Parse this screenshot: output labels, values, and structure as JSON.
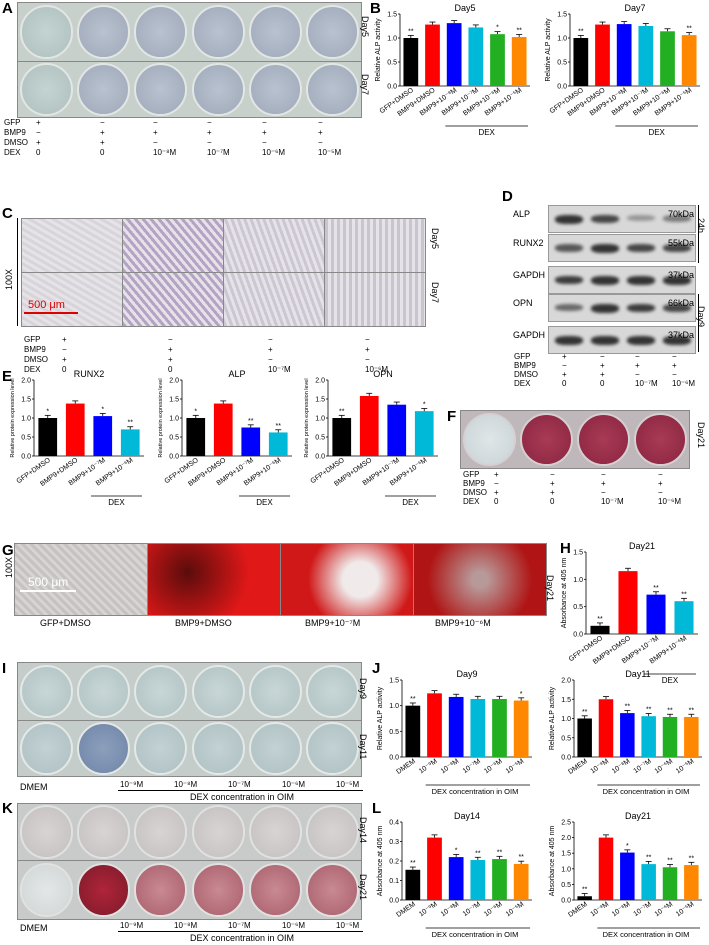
{
  "panels": {
    "A": "A",
    "B": "B",
    "C": "C",
    "D": "D",
    "E": "E",
    "F": "F",
    "G": "G",
    "H": "H",
    "I": "I",
    "J": "J",
    "K": "K",
    "L": "L"
  },
  "days": {
    "day5": "Day5",
    "day7": "Day7",
    "day9": "Day9",
    "day11": "Day11",
    "day14": "Day14",
    "day21": "Day21",
    "h24": "24h"
  },
  "treat_labels": [
    "GFP",
    "BMP9",
    "DMSO",
    "DEX"
  ],
  "treat_A": {
    "GFP": [
      "+",
      "−",
      "−",
      "−",
      "−",
      "−"
    ],
    "BMP9": [
      "−",
      "+",
      "+",
      "+",
      "+",
      "+"
    ],
    "DMSO": [
      "+",
      "+",
      "−",
      "−",
      "−",
      "−"
    ],
    "DEX": [
      "0",
      "0",
      "10⁻⁸M",
      "10⁻⁷M",
      "10⁻⁶M",
      "10⁻⁵M"
    ]
  },
  "treat_4": {
    "GFP": [
      "+",
      "−",
      "−",
      "−"
    ],
    "BMP9": [
      "−",
      "+",
      "+",
      "+"
    ],
    "DMSO": [
      "+",
      "+",
      "−",
      "−"
    ],
    "DEX": [
      "0",
      "0",
      "10⁻⁷M",
      "10⁻⁶M"
    ]
  },
  "scale_bar": "500 μm",
  "mag": "100X",
  "g_labels": [
    "GFP+DMSO",
    "BMP9+DMSO",
    "BMP9+10⁻⁷M",
    "BMP9+10⁻⁶M"
  ],
  "blot_proteins": [
    "ALP",
    "RUNX2",
    "GAPDH",
    "OPN",
    "GAPDH"
  ],
  "blot_kda": [
    "70kDa",
    "55kDa",
    "37kDa",
    "66kDa",
    "37kDa"
  ],
  "ij_labels": {
    "dmem": "DMEM",
    "oim": "DEX concentration in OIM",
    "conc": [
      "10⁻⁹M",
      "10⁻⁸M",
      "10⁻⁷M",
      "10⁻⁶M",
      "10⁻⁵M"
    ]
  },
  "colors": [
    "#000000",
    "#ff0000",
    "#0000ff",
    "#00b8d8",
    "#22b022",
    "#ff8800"
  ],
  "chart_data": [
    {
      "id": "B-day5",
      "type": "bar",
      "title": "Day5",
      "ylabel": "Relative ALP activity",
      "ylim": [
        0,
        1.5
      ],
      "ticks": [
        0,
        0.5,
        1.0,
        1.5
      ],
      "categories": [
        "GFP+DMSO",
        "BMP9+DMSO",
        "BMP9+10⁻⁸M",
        "BMP9+10⁻⁷M",
        "BMP9+10⁻⁶M",
        "BMP9+10⁻⁵M"
      ],
      "values": [
        1.0,
        1.28,
        1.31,
        1.22,
        1.08,
        1.02
      ],
      "sig": [
        "**",
        "",
        "",
        "",
        "*",
        "**"
      ],
      "group": "DEX"
    },
    {
      "id": "B-day7",
      "type": "bar",
      "title": "Day7",
      "ylabel": "Relative ALP activity",
      "ylim": [
        0,
        1.5
      ],
      "ticks": [
        0,
        0.5,
        1.0,
        1.5
      ],
      "categories": [
        "GFP+DMSO",
        "BMP9+DMSO",
        "BMP9+10⁻⁸M",
        "BMP9+10⁻⁷M",
        "BMP9+10⁻⁶M",
        "BMP9+10⁻⁵M"
      ],
      "values": [
        1.0,
        1.28,
        1.29,
        1.25,
        1.14,
        1.06
      ],
      "sig": [
        "**",
        "",
        "",
        "",
        "",
        "**"
      ],
      "group": "DEX"
    },
    {
      "id": "E-runx2",
      "type": "bar",
      "title": "RUNX2",
      "ylabel": "Relative protein expression level",
      "ylim": [
        0,
        2.0
      ],
      "ticks": [
        0,
        0.5,
        1.0,
        1.5,
        2.0
      ],
      "categories": [
        "GFP+DMSO",
        "BMP9+DMSO",
        "BMP9+10⁻⁷M",
        "BMP9+10⁻⁶M"
      ],
      "values": [
        1.0,
        1.38,
        1.05,
        0.7
      ],
      "sig": [
        "*",
        "",
        "*",
        "**"
      ],
      "group": "DEX"
    },
    {
      "id": "E-alp",
      "type": "bar",
      "title": "ALP",
      "ylabel": "Relative protein expression level",
      "ylim": [
        0,
        2.0
      ],
      "ticks": [
        0,
        0.5,
        1.0,
        1.5,
        2.0
      ],
      "categories": [
        "GFP+DMSO",
        "BMP9+DMSO",
        "BMP9+10⁻⁷M",
        "BMP9+10⁻⁶M"
      ],
      "values": [
        1.0,
        1.38,
        0.75,
        0.62
      ],
      "sig": [
        "*",
        "",
        "**",
        "**"
      ],
      "group": "DEX"
    },
    {
      "id": "E-opn",
      "type": "bar",
      "title": "OPN",
      "ylabel": "Relative protein expression level",
      "ylim": [
        0,
        2.0
      ],
      "ticks": [
        0,
        0.5,
        1.0,
        1.5,
        2.0
      ],
      "categories": [
        "GFP+DMSO",
        "BMP9+DMSO",
        "BMP9+10⁻⁷M",
        "BMP9+10⁻⁶M"
      ],
      "values": [
        1.0,
        1.58,
        1.35,
        1.18
      ],
      "sig": [
        "**",
        "",
        "",
        "*"
      ],
      "group": "DEX"
    },
    {
      "id": "H-day21",
      "type": "bar",
      "title": "Day21",
      "ylabel": "Absorbance at 405 nm",
      "ylim": [
        0,
        1.5
      ],
      "ticks": [
        0,
        0.5,
        1.0,
        1.5
      ],
      "categories": [
        "GFP+DMSO",
        "BMP9+DMSO",
        "BMP9+10⁻⁷M",
        "BMP9+10⁻⁶M"
      ],
      "values": [
        0.15,
        1.15,
        0.72,
        0.6
      ],
      "sig": [
        "**",
        "",
        "**",
        "**"
      ],
      "group": "DEX"
    },
    {
      "id": "J-day9",
      "type": "bar",
      "title": "Day9",
      "ylabel": "Relative ALP activity",
      "ylim": [
        0,
        1.5
      ],
      "ticks": [
        0,
        0.5,
        1.0,
        1.5
      ],
      "categories": [
        "DMEM",
        "10⁻⁹M",
        "10⁻⁸M",
        "10⁻⁷M",
        "10⁻⁶M",
        "10⁻⁵M"
      ],
      "values": [
        1.0,
        1.24,
        1.17,
        1.13,
        1.13,
        1.1
      ],
      "sig": [
        "**",
        "",
        "",
        "",
        "",
        "*"
      ],
      "xtitle": "DEX concentration in OIM"
    },
    {
      "id": "J-day11",
      "type": "bar",
      "title": "Day11",
      "ylabel": "Relative ALP activity",
      "ylim": [
        0,
        2.0
      ],
      "ticks": [
        0,
        0.5,
        1.0,
        1.5,
        2.0
      ],
      "categories": [
        "DMEM",
        "10⁻⁹M",
        "10⁻⁸M",
        "10⁻⁷M",
        "10⁻⁶M",
        "10⁻⁵M"
      ],
      "values": [
        1.0,
        1.5,
        1.14,
        1.06,
        1.04,
        1.04
      ],
      "sig": [
        "**",
        "",
        "**",
        "**",
        "**",
        "**"
      ],
      "xtitle": "DEX concentration in OIM"
    },
    {
      "id": "L-day14",
      "type": "bar",
      "title": "Day14",
      "ylabel": "Absorbance at 405 nm",
      "ylim": [
        0,
        0.4
      ],
      "ticks": [
        0,
        0.1,
        0.2,
        0.3,
        0.4
      ],
      "categories": [
        "DMEM",
        "10⁻⁹M",
        "10⁻⁸M",
        "10⁻⁷M",
        "10⁻⁶M",
        "10⁻⁵M"
      ],
      "values": [
        0.155,
        0.32,
        0.22,
        0.205,
        0.21,
        0.185
      ],
      "sig": [
        "**",
        "",
        "*",
        "**",
        "**",
        "**"
      ],
      "xtitle": "DEX concentration in OIM"
    },
    {
      "id": "L-day21",
      "type": "bar",
      "title": "Day21",
      "ylabel": "Absorbance at 405 nm",
      "ylim": [
        0,
        2.5
      ],
      "ticks": [
        0,
        0.5,
        1.0,
        1.5,
        2.0,
        2.5
      ],
      "categories": [
        "DMEM",
        "10⁻⁹M",
        "10⁻⁸M",
        "10⁻⁷M",
        "10⁻⁶M",
        "10⁻⁵M"
      ],
      "values": [
        0.12,
        2.0,
        1.52,
        1.15,
        1.05,
        1.12
      ],
      "sig": [
        "**",
        "",
        "*",
        "**",
        "**",
        "**"
      ],
      "xtitle": "DEX concentration in OIM"
    }
  ]
}
